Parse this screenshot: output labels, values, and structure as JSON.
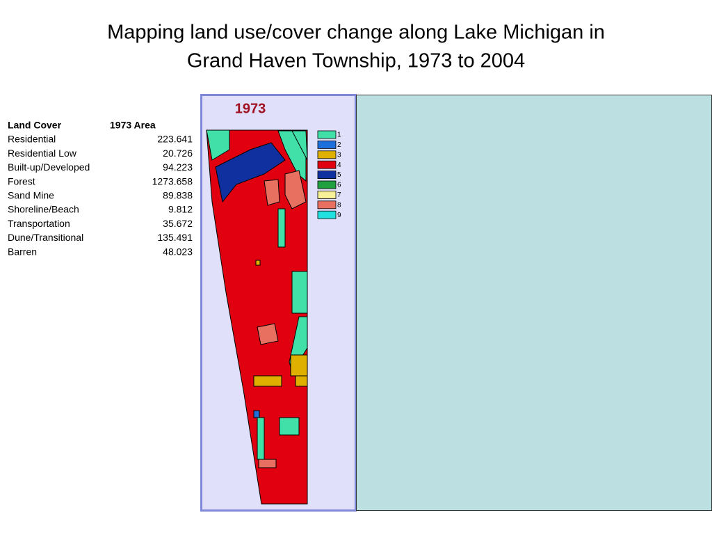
{
  "title": [
    "Mapping land use/cover change along Lake Michigan in",
    "Grand Haven Township, 1973 to 2004"
  ],
  "table": {
    "header": [
      "Land Cover",
      "1973 Area"
    ],
    "rows": [
      [
        "Residential",
        "223.641"
      ],
      [
        "Residential Low",
        "20.726"
      ],
      [
        "Built-up/Developed",
        "94.223"
      ],
      [
        "Forest",
        "1273.658"
      ],
      [
        "Sand Mine",
        "89.838"
      ],
      [
        "Shoreline/Beach",
        "9.812"
      ],
      [
        "Transportation",
        "35.672"
      ],
      [
        "Dune/Transitional",
        "135.491"
      ],
      [
        "Barren",
        "48.023"
      ]
    ]
  },
  "map": {
    "title": "1973",
    "legend": [
      {
        "label": "1",
        "color": "#40e0a8"
      },
      {
        "label": "2",
        "color": "#1e6fd9"
      },
      {
        "label": "3",
        "color": "#e0b000"
      },
      {
        "label": "4",
        "color": "#e00010"
      },
      {
        "label": "5",
        "color": "#1030a0"
      },
      {
        "label": "6",
        "color": "#20a040"
      },
      {
        "label": "7",
        "color": "#f8f098"
      },
      {
        "label": "8",
        "color": "#e87060"
      },
      {
        "label": "9",
        "color": "#20e0e0"
      }
    ]
  }
}
